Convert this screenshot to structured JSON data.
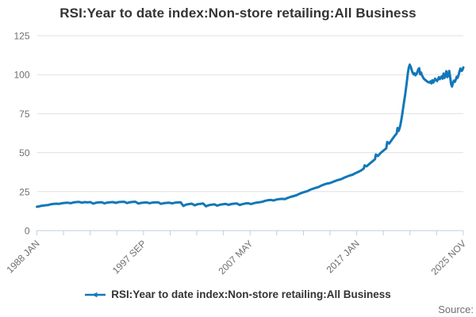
{
  "title": "RSI:Year to date index:Non-store retailing:All Business",
  "legend": {
    "label": "RSI:Year to date index:Non-store retailing:All Business",
    "marker_icon": "line-with-triangle-marker"
  },
  "source_label": "Source:",
  "colors": {
    "series": "#1277b8",
    "grid": "#e1e1e1",
    "axis": "#c3cdda",
    "tick_label": "#6f6f6f",
    "title_text": "#333333",
    "legend_text": "#333333",
    "source_text": "#6f6f6f",
    "background": "#ffffff"
  },
  "chart_data": {
    "type": "line",
    "title": "RSI:Year to date index:Non-store retailing:All Business",
    "xlabel": "",
    "ylabel": "",
    "grid": "horizontal-only",
    "legend_position": "bottom",
    "y_ticks": [
      0,
      25,
      50,
      75,
      100,
      125
    ],
    "ylim": [
      0,
      125
    ],
    "x_tick_labels": [
      "1988 JAN",
      "1997 SEP",
      "2007 MAY",
      "2017 JAN",
      "2025 NOV"
    ],
    "x_labeled_tick_indices": [
      0,
      4,
      8,
      12,
      16
    ],
    "x_minor_tick_count": 17,
    "xlim_years": [
      1988.0,
      2025.8333
    ],
    "series": [
      {
        "name": "RSI:Year to date index:Non-store retailing:All Business",
        "color": "#1277b8",
        "points": [
          [
            1988.0,
            15.3
          ],
          [
            1988.17,
            15.5
          ],
          [
            1988.33,
            15.8
          ],
          [
            1988.5,
            16.0
          ],
          [
            1988.67,
            16.1
          ],
          [
            1988.83,
            16.3
          ],
          [
            1989.0,
            16.4
          ],
          [
            1989.25,
            16.9
          ],
          [
            1989.5,
            17.1
          ],
          [
            1989.75,
            17.3
          ],
          [
            1990.0,
            17.2
          ],
          [
            1990.25,
            17.6
          ],
          [
            1990.5,
            17.8
          ],
          [
            1990.75,
            17.9
          ],
          [
            1991.0,
            17.6
          ],
          [
            1991.25,
            18.1
          ],
          [
            1991.5,
            18.3
          ],
          [
            1991.75,
            18.4
          ],
          [
            1992.0,
            17.9
          ],
          [
            1992.25,
            18.3
          ],
          [
            1992.5,
            18.1
          ],
          [
            1992.75,
            18.3
          ],
          [
            1993.0,
            17.3
          ],
          [
            1993.25,
            17.9
          ],
          [
            1993.5,
            18.1
          ],
          [
            1993.75,
            18.2
          ],
          [
            1994.0,
            17.5
          ],
          [
            1994.25,
            18.0
          ],
          [
            1994.5,
            18.2
          ],
          [
            1994.75,
            18.3
          ],
          [
            1995.0,
            17.8
          ],
          [
            1995.25,
            18.3
          ],
          [
            1995.5,
            18.4
          ],
          [
            1995.75,
            18.5
          ],
          [
            1996.0,
            17.7
          ],
          [
            1996.25,
            18.2
          ],
          [
            1996.5,
            18.4
          ],
          [
            1996.75,
            18.5
          ],
          [
            1997.0,
            17.4
          ],
          [
            1997.25,
            17.8
          ],
          [
            1997.5,
            18.0
          ],
          [
            1997.75,
            18.1
          ],
          [
            1998.0,
            17.6
          ],
          [
            1998.25,
            18.0
          ],
          [
            1998.5,
            18.1
          ],
          [
            1998.75,
            18.2
          ],
          [
            1999.0,
            17.2
          ],
          [
            1999.25,
            17.6
          ],
          [
            1999.5,
            17.8
          ],
          [
            1999.75,
            17.9
          ],
          [
            2000.0,
            17.5
          ],
          [
            2000.25,
            17.9
          ],
          [
            2000.5,
            18.1
          ],
          [
            2000.75,
            18.2
          ],
          [
            2001.0,
            15.8
          ],
          [
            2001.25,
            16.7
          ],
          [
            2001.5,
            17.0
          ],
          [
            2001.75,
            17.3
          ],
          [
            2002.0,
            16.2
          ],
          [
            2002.25,
            16.9
          ],
          [
            2002.5,
            17.2
          ],
          [
            2002.75,
            17.4
          ],
          [
            2003.0,
            15.6
          ],
          [
            2003.25,
            16.3
          ],
          [
            2003.5,
            16.6
          ],
          [
            2003.75,
            16.8
          ],
          [
            2004.0,
            16.0
          ],
          [
            2004.25,
            16.6
          ],
          [
            2004.5,
            16.9
          ],
          [
            2004.75,
            17.1
          ],
          [
            2005.0,
            16.5
          ],
          [
            2005.25,
            17.0
          ],
          [
            2005.5,
            17.3
          ],
          [
            2005.75,
            17.4
          ],
          [
            2006.0,
            16.4
          ],
          [
            2006.25,
            17.0
          ],
          [
            2006.5,
            17.4
          ],
          [
            2006.75,
            17.6
          ],
          [
            2007.0,
            17.0
          ],
          [
            2007.25,
            17.6
          ],
          [
            2007.5,
            18.0
          ],
          [
            2007.75,
            18.2
          ],
          [
            2008.0,
            18.5
          ],
          [
            2008.25,
            19.1
          ],
          [
            2008.5,
            19.5
          ],
          [
            2008.75,
            19.7
          ],
          [
            2009.0,
            19.3
          ],
          [
            2009.25,
            19.9
          ],
          [
            2009.5,
            20.2
          ],
          [
            2009.75,
            20.4
          ],
          [
            2010.0,
            20.2
          ],
          [
            2010.25,
            21.0
          ],
          [
            2010.5,
            21.6
          ],
          [
            2010.75,
            22.1
          ],
          [
            2011.0,
            22.6
          ],
          [
            2011.25,
            23.5
          ],
          [
            2011.5,
            24.2
          ],
          [
            2011.75,
            24.8
          ],
          [
            2012.0,
            25.3
          ],
          [
            2012.25,
            26.2
          ],
          [
            2012.5,
            26.9
          ],
          [
            2012.75,
            27.5
          ],
          [
            2013.0,
            28.0
          ],
          [
            2013.25,
            28.9
          ],
          [
            2013.5,
            29.6
          ],
          [
            2013.75,
            30.2
          ],
          [
            2014.0,
            30.5
          ],
          [
            2014.25,
            31.2
          ],
          [
            2014.5,
            31.9
          ],
          [
            2014.75,
            32.5
          ],
          [
            2015.0,
            33.0
          ],
          [
            2015.25,
            33.9
          ],
          [
            2015.5,
            34.6
          ],
          [
            2015.75,
            35.3
          ],
          [
            2016.0,
            35.8
          ],
          [
            2016.25,
            36.8
          ],
          [
            2016.5,
            37.6
          ],
          [
            2016.75,
            38.5
          ],
          [
            2017.0,
            39.8
          ],
          [
            2017.08,
            41.8
          ],
          [
            2017.25,
            41.2
          ],
          [
            2017.5,
            42.8
          ],
          [
            2017.75,
            44.3
          ],
          [
            2018.0,
            45.8
          ],
          [
            2018.08,
            48.8
          ],
          [
            2018.25,
            47.8
          ],
          [
            2018.5,
            49.8
          ],
          [
            2018.75,
            51.3
          ],
          [
            2019.0,
            52.8
          ],
          [
            2019.08,
            56.8
          ],
          [
            2019.25,
            55.8
          ],
          [
            2019.5,
            58.3
          ],
          [
            2019.75,
            60.8
          ],
          [
            2019.92,
            62.3
          ],
          [
            2020.0,
            65.8
          ],
          [
            2020.08,
            63.8
          ],
          [
            2020.17,
            65.3
          ],
          [
            2020.25,
            67.8
          ],
          [
            2020.33,
            70.8
          ],
          [
            2020.42,
            74.8
          ],
          [
            2020.5,
            78.8
          ],
          [
            2020.58,
            82.8
          ],
          [
            2020.67,
            86.8
          ],
          [
            2020.75,
            91.3
          ],
          [
            2020.83,
            95.8
          ],
          [
            2020.92,
            101.3
          ],
          [
            2021.0,
            104.5
          ],
          [
            2021.08,
            106.4
          ],
          [
            2021.17,
            105.1
          ],
          [
            2021.25,
            103.1
          ],
          [
            2021.33,
            101.4
          ],
          [
            2021.42,
            100.2
          ],
          [
            2021.5,
            100.9
          ],
          [
            2021.58,
            99.6
          ],
          [
            2021.67,
            100.3
          ],
          [
            2021.75,
            101.6
          ],
          [
            2021.83,
            103.3
          ],
          [
            2021.92,
            104.1
          ],
          [
            2022.0,
            100.3
          ],
          [
            2022.08,
            101.4
          ],
          [
            2022.17,
            99.4
          ],
          [
            2022.25,
            98.4
          ],
          [
            2022.33,
            97.4
          ],
          [
            2022.5,
            96.4
          ],
          [
            2022.67,
            95.4
          ],
          [
            2022.83,
            94.9
          ],
          [
            2022.92,
            95.7
          ],
          [
            2023.0,
            94.4
          ],
          [
            2023.08,
            96.4
          ],
          [
            2023.17,
            94.9
          ],
          [
            2023.25,
            96.1
          ],
          [
            2023.33,
            97.4
          ],
          [
            2023.42,
            96.6
          ],
          [
            2023.5,
            95.9
          ],
          [
            2023.58,
            96.9
          ],
          [
            2023.67,
            98.4
          ],
          [
            2023.75,
            97.1
          ],
          [
            2023.83,
            97.9
          ],
          [
            2023.92,
            98.9
          ],
          [
            2024.0,
            97.4
          ],
          [
            2024.08,
            100.7
          ],
          [
            2024.17,
            97.9
          ],
          [
            2024.25,
            99.7
          ],
          [
            2024.33,
            102.2
          ],
          [
            2024.42,
            98.4
          ],
          [
            2024.5,
            99.4
          ],
          [
            2024.58,
            102.4
          ],
          [
            2024.67,
            98.3
          ],
          [
            2024.75,
            94.1
          ],
          [
            2024.83,
            92.4
          ],
          [
            2024.92,
            94.7
          ],
          [
            2025.0,
            96.2
          ],
          [
            2025.08,
            95.4
          ],
          [
            2025.17,
            96.9
          ],
          [
            2025.25,
            98.7
          ],
          [
            2025.33,
            97.9
          ],
          [
            2025.42,
            99.9
          ],
          [
            2025.5,
            102.2
          ],
          [
            2025.58,
            103.9
          ],
          [
            2025.67,
            102.4
          ],
          [
            2025.75,
            102.9
          ],
          [
            2025.83,
            104.6
          ]
        ]
      }
    ]
  }
}
